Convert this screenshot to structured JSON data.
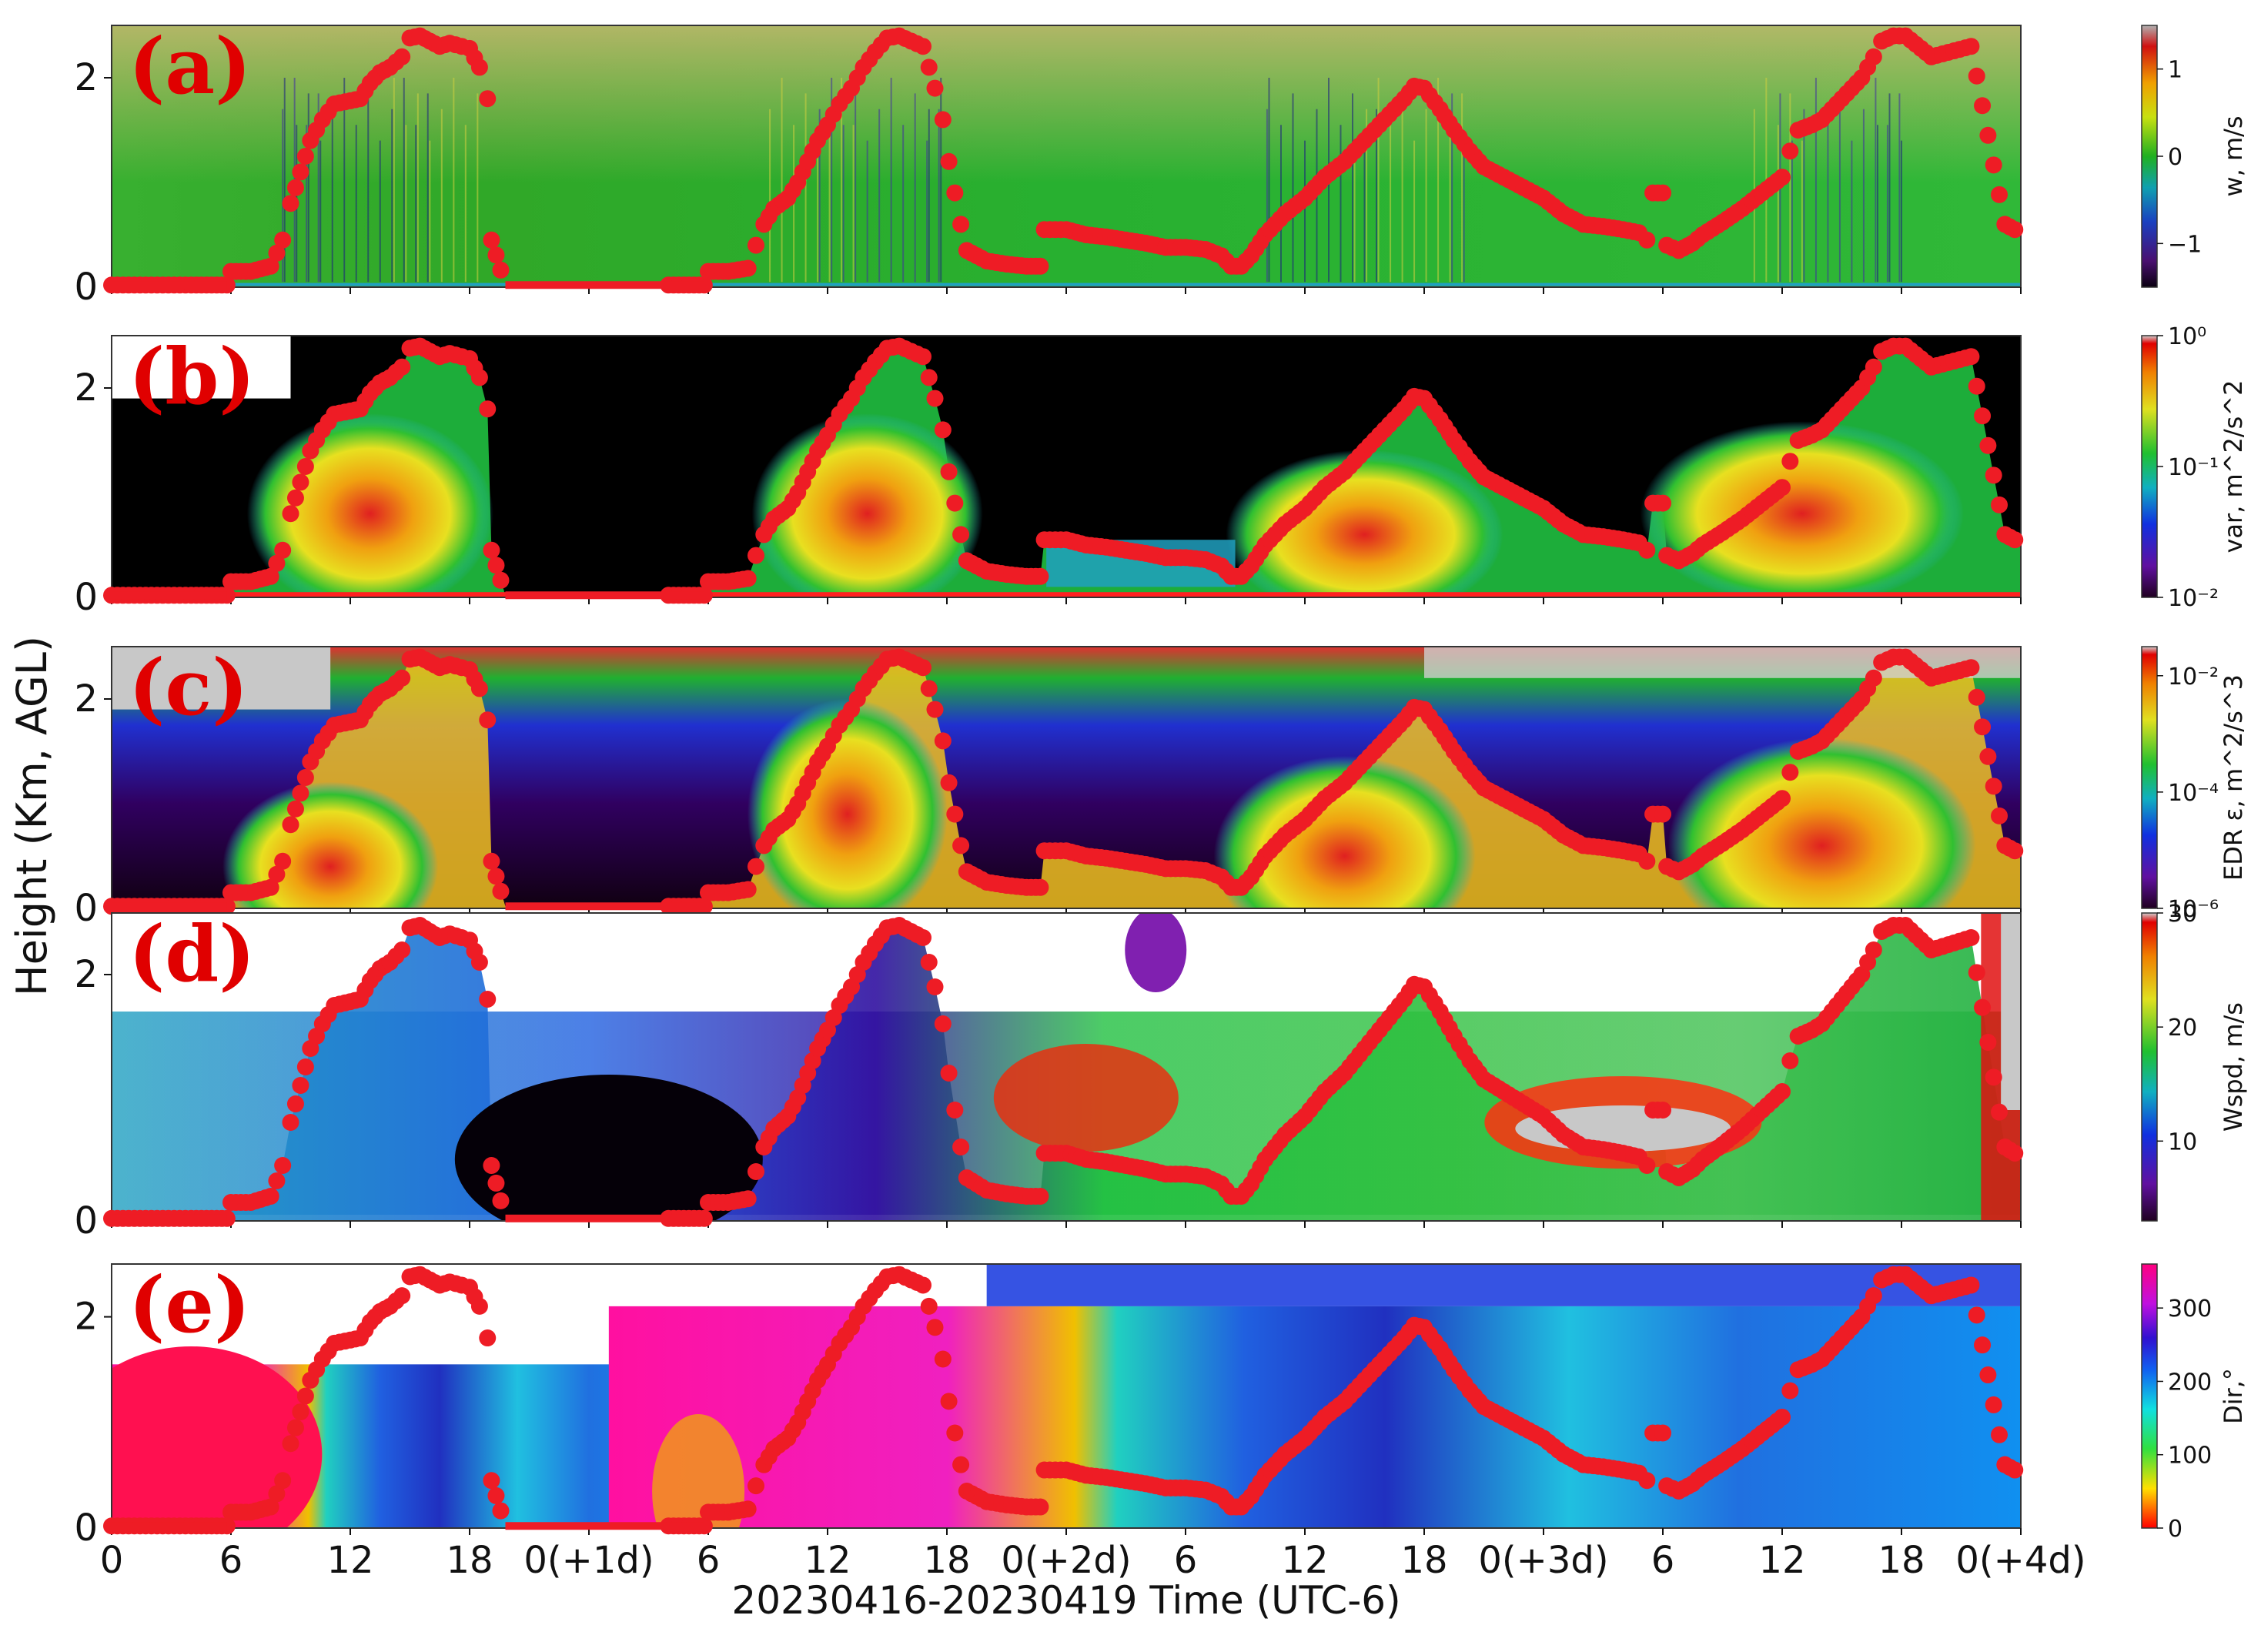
{
  "figure": {
    "ylabel": "Height (Km, AGL)",
    "xlabel": "20230416-20230419 Time (UTC-6)"
  },
  "chart_data": {
    "type": "heatmap",
    "shared_x": {
      "range_hours": [
        0,
        96
      ],
      "ticks": [
        {
          "hour": 0,
          "label": "0"
        },
        {
          "hour": 6,
          "label": "6"
        },
        {
          "hour": 12,
          "label": "12"
        },
        {
          "hour": 18,
          "label": "18"
        },
        {
          "hour": 24,
          "label": "0(+1d)"
        },
        {
          "hour": 30,
          "label": "6"
        },
        {
          "hour": 36,
          "label": "12"
        },
        {
          "hour": 42,
          "label": "18"
        },
        {
          "hour": 48,
          "label": "0(+2d)"
        },
        {
          "hour": 54,
          "label": "6"
        },
        {
          "hour": 60,
          "label": "12"
        },
        {
          "hour": 66,
          "label": "18"
        },
        {
          "hour": 72,
          "label": "0(+3d)"
        },
        {
          "hour": 78,
          "label": "6"
        },
        {
          "hour": 84,
          "label": "12"
        },
        {
          "hour": 90,
          "label": "18"
        },
        {
          "hour": 96,
          "label": "0(+4d)"
        }
      ]
    },
    "ylim_km": [
      0,
      2.5
    ],
    "y_ticks": [
      0,
      2
    ],
    "boundary_layer_height_km": [
      [
        0,
        0.02
      ],
      [
        2,
        0.02
      ],
      [
        4,
        0.02
      ],
      [
        5.8,
        0.02
      ],
      [
        6,
        0.15
      ],
      [
        7,
        0.15
      ],
      [
        8,
        0.2
      ],
      [
        8.6,
        0.45
      ],
      [
        9,
        0.8
      ],
      [
        9.5,
        1.1
      ],
      [
        10,
        1.4
      ],
      [
        10.6,
        1.6
      ],
      [
        11.2,
        1.75
      ],
      [
        12,
        1.78
      ],
      [
        12.5,
        1.8
      ],
      [
        13,
        1.95
      ],
      [
        13.5,
        2.05
      ],
      [
        14,
        2.1
      ],
      [
        14.6,
        2.2
      ],
      [
        15,
        2.38
      ],
      [
        15.5,
        2.4
      ],
      [
        16,
        2.35
      ],
      [
        16.5,
        2.3
      ],
      [
        17,
        2.33
      ],
      [
        17.6,
        2.3
      ],
      [
        18,
        2.28
      ],
      [
        18.5,
        2.1
      ],
      [
        18.9,
        1.8
      ],
      [
        19.1,
        0.45
      ],
      [
        19.8,
        0.02
      ],
      [
        24,
        0.02
      ],
      [
        28,
        0.02
      ],
      [
        29.8,
        0.02
      ],
      [
        30,
        0.15
      ],
      [
        31,
        0.15
      ],
      [
        32,
        0.18
      ],
      [
        32.4,
        0.4
      ],
      [
        32.8,
        0.6
      ],
      [
        33.3,
        0.75
      ],
      [
        34,
        0.85
      ],
      [
        34.5,
        1.0
      ],
      [
        35,
        1.2
      ],
      [
        35.5,
        1.4
      ],
      [
        36,
        1.55
      ],
      [
        36.6,
        1.75
      ],
      [
        37.2,
        1.9
      ],
      [
        37.8,
        2.1
      ],
      [
        38.4,
        2.25
      ],
      [
        39,
        2.38
      ],
      [
        39.6,
        2.4
      ],
      [
        40.2,
        2.35
      ],
      [
        40.8,
        2.3
      ],
      [
        41.4,
        1.9
      ],
      [
        41.8,
        1.6
      ],
      [
        42.1,
        1.2
      ],
      [
        42.4,
        0.9
      ],
      [
        42.7,
        0.6
      ],
      [
        43,
        0.35
      ],
      [
        44,
        0.25
      ],
      [
        45,
        0.22
      ],
      [
        46,
        0.2
      ],
      [
        46.7,
        0.2
      ],
      [
        46.9,
        0.55
      ],
      [
        48,
        0.55
      ],
      [
        49,
        0.5
      ],
      [
        50,
        0.48
      ],
      [
        51,
        0.45
      ],
      [
        52,
        0.42
      ],
      [
        53,
        0.38
      ],
      [
        54,
        0.38
      ],
      [
        55,
        0.36
      ],
      [
        55.8,
        0.3
      ],
      [
        56.3,
        0.2
      ],
      [
        56.8,
        0.2
      ],
      [
        57.3,
        0.3
      ],
      [
        58,
        0.5
      ],
      [
        59,
        0.7
      ],
      [
        60,
        0.85
      ],
      [
        61,
        1.05
      ],
      [
        62,
        1.2
      ],
      [
        63,
        1.4
      ],
      [
        64,
        1.6
      ],
      [
        65,
        1.8
      ],
      [
        65.5,
        1.92
      ],
      [
        66,
        1.9
      ],
      [
        66.8,
        1.7
      ],
      [
        67.5,
        1.5
      ],
      [
        68.3,
        1.3
      ],
      [
        69,
        1.15
      ],
      [
        70,
        1.05
      ],
      [
        71,
        0.95
      ],
      [
        72,
        0.85
      ],
      [
        73,
        0.7
      ],
      [
        74,
        0.6
      ],
      [
        75,
        0.58
      ],
      [
        76,
        0.55
      ],
      [
        76.8,
        0.52
      ],
      [
        77.2,
        0.45
      ],
      [
        77.5,
        0.9
      ],
      [
        78,
        0.9
      ],
      [
        78.2,
        0.4
      ],
      [
        78.8,
        0.35
      ],
      [
        79.5,
        0.42
      ],
      [
        80,
        0.5
      ],
      [
        81,
        0.62
      ],
      [
        82,
        0.75
      ],
      [
        83,
        0.9
      ],
      [
        84,
        1.05
      ],
      [
        84.4,
        1.3
      ],
      [
        84.8,
        1.5
      ],
      [
        85.5,
        1.55
      ],
      [
        86,
        1.6
      ],
      [
        87,
        1.8
      ],
      [
        88,
        2.0
      ],
      [
        88.6,
        2.2
      ],
      [
        89,
        2.35
      ],
      [
        89.6,
        2.4
      ],
      [
        90.2,
        2.4
      ],
      [
        91.5,
        2.2
      ],
      [
        93.5,
        2.3
      ],
      [
        95.2,
        0.6
      ],
      [
        95.7,
        0.55
      ],
      [
        96,
        0.58
      ]
    ],
    "panels": [
      {
        "label": "(a)",
        "colorbar_label": "w, m/s",
        "scale": "linear",
        "range": [
          -1.5,
          1.5
        ],
        "ticks": [
          {
            "value": 1,
            "label": "1"
          },
          {
            "value": 0,
            "label": "0"
          },
          {
            "value": -1,
            "label": "−1"
          }
        ]
      },
      {
        "label": "(b)",
        "colorbar_label": "var, m^2/s^2",
        "scale": "log",
        "range": [
          -2,
          0
        ],
        "ticks": [
          {
            "value": 0,
            "label": "10⁰"
          },
          {
            "value": -1,
            "label": "10⁻¹"
          },
          {
            "value": -2,
            "label": "10⁻²"
          }
        ]
      },
      {
        "label": "(c)",
        "colorbar_label": "EDR ε, m^2/s^3",
        "scale": "log",
        "range": [
          -6,
          -1.5
        ],
        "ticks": [
          {
            "value": -2,
            "label": "10⁻²"
          },
          {
            "value": -4,
            "label": "10⁻⁴"
          },
          {
            "value": -6,
            "label": "10⁻⁶"
          }
        ]
      },
      {
        "label": "(d)",
        "colorbar_label": "Wspd, m/s",
        "scale": "linear",
        "range": [
          3,
          30
        ],
        "ticks": [
          {
            "value": 30,
            "label": "30"
          },
          {
            "value": 20,
            "label": "20"
          },
          {
            "value": 10,
            "label": "10"
          }
        ]
      },
      {
        "label": "(e)",
        "colorbar_label": "Dir,°",
        "scale": "linear",
        "range": [
          0,
          360
        ],
        "ticks": [
          {
            "value": 300,
            "label": "300"
          },
          {
            "value": 200,
            "label": "200"
          },
          {
            "value": 100,
            "label": "100"
          },
          {
            "value": 0,
            "label": "0"
          }
        ]
      }
    ]
  }
}
